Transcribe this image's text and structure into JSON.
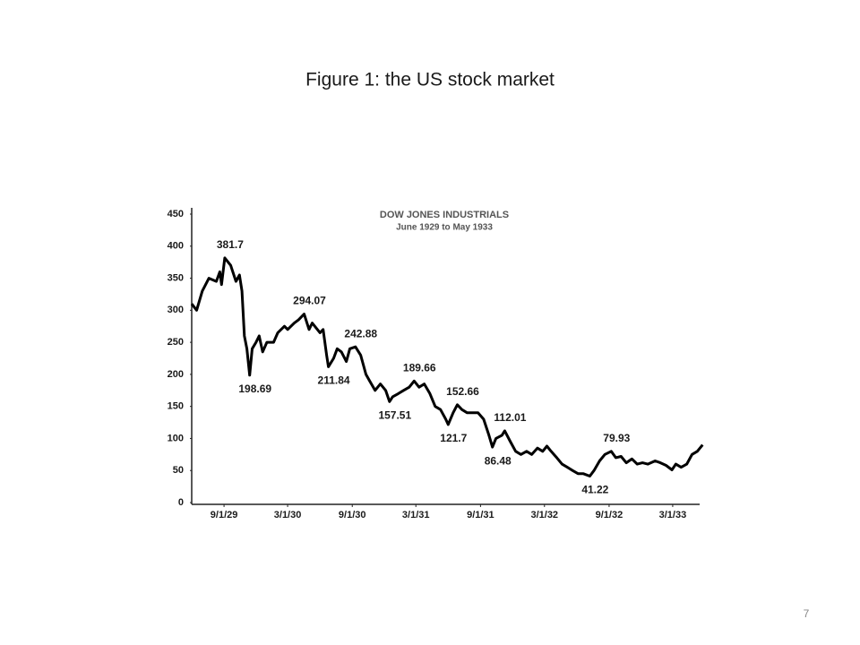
{
  "page_title": "Figure 1: the US stock market",
  "page_number": "7",
  "chart_data": {
    "type": "line",
    "title": "DOW JONES INDUSTRIALS",
    "subtitle": "June 1929 to May 1933",
    "color": "#000000",
    "ylim": [
      0,
      450
    ],
    "yticks": [
      0,
      50,
      100,
      150,
      200,
      250,
      300,
      350,
      400,
      450
    ],
    "xlim": [
      "1929-06-01",
      "1933-06-01"
    ],
    "xticks": [
      {
        "value": "1929-09-01",
        "label": "9/1/29"
      },
      {
        "value": "1930-03-01",
        "label": "3/1/30"
      },
      {
        "value": "1930-09-01",
        "label": "9/1/30"
      },
      {
        "value": "1931-03-01",
        "label": "3/1/31"
      },
      {
        "value": "1931-09-01",
        "label": "9/1/31"
      },
      {
        "value": "1932-03-01",
        "label": "3/1/32"
      },
      {
        "value": "1932-09-01",
        "label": "9/1/32"
      },
      {
        "value": "1933-03-01",
        "label": "3/1/33"
      }
    ],
    "x": [
      "1929-06-01",
      "1929-06-15",
      "1929-07-01",
      "1929-07-20",
      "1929-08-10",
      "1929-08-20",
      "1929-08-25",
      "1929-09-03",
      "1929-09-20",
      "1929-10-05",
      "1929-10-15",
      "1929-10-22",
      "1929-10-29",
      "1929-11-05",
      "1929-11-13",
      "1929-11-20",
      "1929-12-01",
      "1929-12-10",
      "1929-12-20",
      "1930-01-01",
      "1930-01-20",
      "1930-02-01",
      "1930-02-20",
      "1930-03-01",
      "1930-03-20",
      "1930-04-01",
      "1930-04-17",
      "1930-05-01",
      "1930-05-10",
      "1930-06-01",
      "1930-06-10",
      "1930-06-20",
      "1930-06-25",
      "1930-07-10",
      "1930-07-20",
      "1930-08-01",
      "1930-08-15",
      "1930-08-25",
      "1930-09-10",
      "1930-09-25",
      "1930-10-10",
      "1930-10-20",
      "1930-11-05",
      "1930-11-20",
      "1930-12-05",
      "1930-12-16",
      "1930-12-25",
      "1931-01-10",
      "1931-01-25",
      "1931-02-10",
      "1931-02-24",
      "1931-03-10",
      "1931-03-25",
      "1931-04-10",
      "1931-04-25",
      "1931-05-10",
      "1931-05-25",
      "1931-06-01",
      "1931-06-15",
      "1931-06-27",
      "1931-07-10",
      "1931-07-25",
      "1931-08-10",
      "1931-08-25",
      "1931-09-10",
      "1931-09-25",
      "1931-10-05",
      "1931-10-15",
      "1931-11-01",
      "1931-11-09",
      "1931-11-25",
      "1931-12-10",
      "1931-12-25",
      "1932-01-10",
      "1932-01-25",
      "1932-02-10",
      "1932-02-25",
      "1932-03-08",
      "1932-03-20",
      "1932-04-05",
      "1932-04-20",
      "1932-05-05",
      "1932-05-20",
      "1932-06-05",
      "1932-06-20",
      "1932-07-08",
      "1932-07-20",
      "1932-08-05",
      "1932-08-20",
      "1932-09-07",
      "1932-09-20",
      "1932-10-05",
      "1932-10-20",
      "1932-11-05",
      "1932-11-20",
      "1932-12-05",
      "1932-12-20",
      "1933-01-10",
      "1933-01-25",
      "1933-02-10",
      "1933-02-27",
      "1933-03-10",
      "1933-03-25",
      "1933-04-10",
      "1933-04-25",
      "1933-05-10",
      "1933-05-25"
    ],
    "values": [
      310,
      300,
      330,
      350,
      345,
      360,
      340,
      381.7,
      370,
      345,
      355,
      330,
      260,
      240,
      198.69,
      240,
      250,
      260,
      235,
      250,
      250,
      265,
      275,
      270,
      280,
      285,
      294.07,
      270,
      280,
      265,
      270,
      230,
      211.84,
      225,
      240,
      235,
      220,
      240,
      242.88,
      230,
      200,
      190,
      175,
      185,
      175,
      157.51,
      165,
      170,
      175,
      180,
      189.66,
      180,
      185,
      170,
      150,
      145,
      130,
      121.7,
      140,
      152.66,
      145,
      140,
      140,
      140,
      130,
      105,
      86.48,
      100,
      105,
      112.01,
      95,
      80,
      75,
      80,
      75,
      85,
      80,
      88,
      80,
      70,
      60,
      55,
      50,
      45,
      45,
      41.22,
      50,
      65,
      75,
      79.93,
      70,
      72,
      62,
      68,
      60,
      62,
      60,
      65,
      62,
      58,
      51,
      60,
      55,
      60,
      75,
      80,
      90
    ],
    "annotations": [
      {
        "x": "1929-09-03",
        "value": 381.7
      },
      {
        "x": "1929-11-13",
        "value": 198.69
      },
      {
        "x": "1930-04-17",
        "value": 294.07
      },
      {
        "x": "1930-06-25",
        "value": 211.84
      },
      {
        "x": "1930-09-10",
        "value": 242.88
      },
      {
        "x": "1930-12-16",
        "value": 157.51
      },
      {
        "x": "1931-02-24",
        "value": 189.66
      },
      {
        "x": "1931-06-01",
        "value": 121.7
      },
      {
        "x": "1931-06-27",
        "value": 152.66
      },
      {
        "x": "1931-10-05",
        "value": 86.48
      },
      {
        "x": "1931-11-09",
        "value": 112.01
      },
      {
        "x": "1932-07-08",
        "value": 41.22
      },
      {
        "x": "1932-09-07",
        "value": 79.93
      }
    ]
  }
}
